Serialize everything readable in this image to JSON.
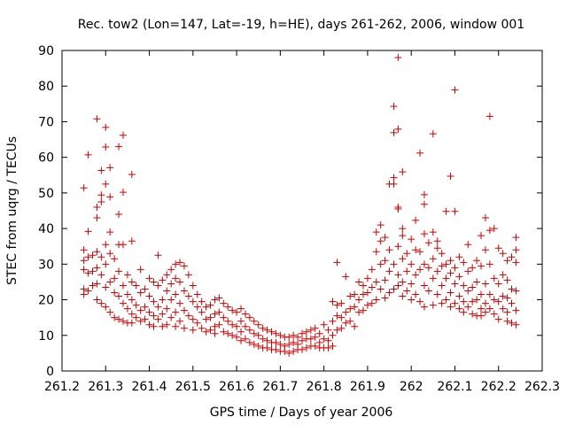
{
  "chart_data": {
    "type": "scatter",
    "title": "Rec. tow2 (Lon=147, Lat=-19, h=HE), days 261-262, 2006, window 001",
    "xlabel": "GPS time / Days of year 2006",
    "ylabel": "STEC from uqrg / TECUs",
    "xlim": [
      261.2,
      262.3
    ],
    "ylim": [
      0,
      90
    ],
    "xticks": [
      "261.2",
      "261.3",
      "261.4",
      "261.5",
      "261.6",
      "261.7",
      "261.8",
      "261.9",
      "262",
      "262.1",
      "262.2",
      "262.3"
    ],
    "yticks": [
      "0",
      "10",
      "20",
      "30",
      "40",
      "50",
      "60",
      "70",
      "80",
      "90"
    ],
    "grid": false,
    "legend": "none",
    "marker": "+",
    "color": "#cc0000",
    "points": [
      [
        261.25,
        51.4
      ],
      [
        261.25,
        34.0
      ],
      [
        261.25,
        31.0
      ],
      [
        261.25,
        28.5
      ],
      [
        261.25,
        23.0
      ],
      [
        261.25,
        21.5
      ],
      [
        261.26,
        60.7
      ],
      [
        261.26,
        39.2
      ],
      [
        261.26,
        32.0
      ],
      [
        261.26,
        27.5
      ],
      [
        261.26,
        22.5
      ],
      [
        261.27,
        32.5
      ],
      [
        261.27,
        28.0
      ],
      [
        261.27,
        24.0
      ],
      [
        261.28,
        70.8
      ],
      [
        261.28,
        46.0
      ],
      [
        261.28,
        43.0
      ],
      [
        261.28,
        33.5
      ],
      [
        261.28,
        29.0
      ],
      [
        261.28,
        24.5
      ],
      [
        261.28,
        20.0
      ],
      [
        261.29,
        56.3
      ],
      [
        261.29,
        49.4
      ],
      [
        261.29,
        47.5
      ],
      [
        261.29,
        32.0
      ],
      [
        261.29,
        27.0
      ],
      [
        261.29,
        19.0
      ],
      [
        261.3,
        68.4
      ],
      [
        261.3,
        62.9
      ],
      [
        261.3,
        52.5
      ],
      [
        261.3,
        35.5
      ],
      [
        261.3,
        30.0
      ],
      [
        261.3,
        23.5
      ],
      [
        261.3,
        18.0
      ],
      [
        261.31,
        57.1
      ],
      [
        261.31,
        48.9
      ],
      [
        261.31,
        39.0
      ],
      [
        261.31,
        33.0
      ],
      [
        261.31,
        25.0
      ],
      [
        261.31,
        16.5
      ],
      [
        261.32,
        31.5
      ],
      [
        261.32,
        26.0
      ],
      [
        261.32,
        22.0
      ],
      [
        261.32,
        15.0
      ],
      [
        261.33,
        63.0
      ],
      [
        261.33,
        44.0
      ],
      [
        261.33,
        35.5
      ],
      [
        261.33,
        28.0
      ],
      [
        261.33,
        21.0
      ],
      [
        261.33,
        14.5
      ],
      [
        261.34,
        66.2
      ],
      [
        261.34,
        50.2
      ],
      [
        261.34,
        35.5
      ],
      [
        261.34,
        24.0
      ],
      [
        261.34,
        19.0
      ],
      [
        261.34,
        14.0
      ],
      [
        261.35,
        27.0
      ],
      [
        261.35,
        21.5
      ],
      [
        261.35,
        17.5
      ],
      [
        261.35,
        13.5
      ],
      [
        261.36,
        55.2
      ],
      [
        261.36,
        36.5
      ],
      [
        261.36,
        25.0
      ],
      [
        261.36,
        20.0
      ],
      [
        261.36,
        16.0
      ],
      [
        261.36,
        13.5
      ],
      [
        261.37,
        24.0
      ],
      [
        261.37,
        18.5
      ],
      [
        261.37,
        15.0
      ],
      [
        261.38,
        28.5
      ],
      [
        261.38,
        22.0
      ],
      [
        261.38,
        17.0
      ],
      [
        261.38,
        14.0
      ],
      [
        261.39,
        23.0
      ],
      [
        261.39,
        18.0
      ],
      [
        261.39,
        14.5
      ],
      [
        261.4,
        26.0
      ],
      [
        261.4,
        21.0
      ],
      [
        261.4,
        16.5
      ],
      [
        261.4,
        13.0
      ],
      [
        261.41,
        25.0
      ],
      [
        261.41,
        19.5
      ],
      [
        261.41,
        15.5
      ],
      [
        261.41,
        12.5
      ],
      [
        261.42,
        32.5
      ],
      [
        261.42,
        24.0
      ],
      [
        261.42,
        18.0
      ],
      [
        261.42,
        14.5
      ],
      [
        261.43,
        25.5
      ],
      [
        261.43,
        20.0
      ],
      [
        261.43,
        16.0
      ],
      [
        261.43,
        12.5
      ],
      [
        261.44,
        27.0
      ],
      [
        261.44,
        22.5
      ],
      [
        261.44,
        17.5
      ],
      [
        261.44,
        13.0
      ],
      [
        261.45,
        28.5
      ],
      [
        261.45,
        24.5
      ],
      [
        261.45,
        20.0
      ],
      [
        261.45,
        15.0
      ],
      [
        261.46,
        30.0
      ],
      [
        261.46,
        26.0
      ],
      [
        261.46,
        21.5
      ],
      [
        261.46,
        16.5
      ],
      [
        261.46,
        12.5
      ],
      [
        261.47,
        30.5
      ],
      [
        261.47,
        25.0
      ],
      [
        261.47,
        19.0
      ],
      [
        261.47,
        14.0
      ],
      [
        261.48,
        29.5
      ],
      [
        261.48,
        22.5
      ],
      [
        261.48,
        17.0
      ],
      [
        261.48,
        12.0
      ],
      [
        261.49,
        27.0
      ],
      [
        261.49,
        21.0
      ],
      [
        261.49,
        15.5
      ],
      [
        261.5,
        24.0
      ],
      [
        261.5,
        19.5
      ],
      [
        261.5,
        14.5
      ],
      [
        261.5,
        11.5
      ],
      [
        261.51,
        21.5
      ],
      [
        261.51,
        18.0
      ],
      [
        261.51,
        13.5
      ],
      [
        261.52,
        19.5
      ],
      [
        261.52,
        16.5
      ],
      [
        261.52,
        12.0
      ],
      [
        261.53,
        18.0
      ],
      [
        261.53,
        14.5
      ],
      [
        261.53,
        11.0
      ],
      [
        261.54,
        18.5
      ],
      [
        261.54,
        15.0
      ],
      [
        261.54,
        11.5
      ],
      [
        261.55,
        20.0
      ],
      [
        261.55,
        16.0
      ],
      [
        261.55,
        12.5
      ],
      [
        261.55,
        10.5
      ],
      [
        261.56,
        20.5
      ],
      [
        261.56,
        16.5
      ],
      [
        261.56,
        13.0
      ],
      [
        261.57,
        19.0
      ],
      [
        261.57,
        15.0
      ],
      [
        261.57,
        11.0
      ],
      [
        261.58,
        18.0
      ],
      [
        261.58,
        14.0
      ],
      [
        261.58,
        10.5
      ],
      [
        261.59,
        17.0
      ],
      [
        261.59,
        13.0
      ],
      [
        261.59,
        10.0
      ],
      [
        261.6,
        16.5
      ],
      [
        261.6,
        12.5
      ],
      [
        261.6,
        9.5
      ],
      [
        261.61,
        17.5
      ],
      [
        261.61,
        14.0
      ],
      [
        261.61,
        11.0
      ],
      [
        261.61,
        8.5
      ],
      [
        261.62,
        16.0
      ],
      [
        261.62,
        12.5
      ],
      [
        261.62,
        9.0
      ],
      [
        261.63,
        15.0
      ],
      [
        261.63,
        11.5
      ],
      [
        261.63,
        8.0
      ],
      [
        261.64,
        14.0
      ],
      [
        261.64,
        10.5
      ],
      [
        261.64,
        7.5
      ],
      [
        261.65,
        13.0
      ],
      [
        261.65,
        10.0
      ],
      [
        261.65,
        7.0
      ],
      [
        261.66,
        12.0
      ],
      [
        261.66,
        9.0
      ],
      [
        261.66,
        6.5
      ],
      [
        261.67,
        11.5
      ],
      [
        261.67,
        8.5
      ],
      [
        261.67,
        6.5
      ],
      [
        261.68,
        11.0
      ],
      [
        261.68,
        8.0
      ],
      [
        261.68,
        6.0
      ],
      [
        261.69,
        10.5
      ],
      [
        261.69,
        8.0
      ],
      [
        261.69,
        6.0
      ],
      [
        261.7,
        10.0
      ],
      [
        261.7,
        7.5
      ],
      [
        261.7,
        5.5
      ],
      [
        261.71,
        9.5
      ],
      [
        261.71,
        7.0
      ],
      [
        261.71,
        5.5
      ],
      [
        261.72,
        9.5
      ],
      [
        261.72,
        7.5
      ],
      [
        261.72,
        5.0
      ],
      [
        261.73,
        10.0
      ],
      [
        261.73,
        8.0
      ],
      [
        261.73,
        5.5
      ],
      [
        261.74,
        9.5
      ],
      [
        261.74,
        7.5
      ],
      [
        261.74,
        6.0
      ],
      [
        261.75,
        10.5
      ],
      [
        261.75,
        8.5
      ],
      [
        261.75,
        6.0
      ],
      [
        261.76,
        11.0
      ],
      [
        261.76,
        9.0
      ],
      [
        261.76,
        6.5
      ],
      [
        261.77,
        11.5
      ],
      [
        261.77,
        9.0
      ],
      [
        261.77,
        7.0
      ],
      [
        261.78,
        12.0
      ],
      [
        261.78,
        9.5
      ],
      [
        261.78,
        7.0
      ],
      [
        261.79,
        10.5
      ],
      [
        261.79,
        8.0
      ],
      [
        261.79,
        6.5
      ],
      [
        261.8,
        13.0
      ],
      [
        261.8,
        9.0
      ],
      [
        261.8,
        6.5
      ],
      [
        261.81,
        11.5
      ],
      [
        261.81,
        8.5
      ],
      [
        261.81,
        6.5
      ],
      [
        261.82,
        19.5
      ],
      [
        261.82,
        14.0
      ],
      [
        261.82,
        10.0
      ],
      [
        261.82,
        7.0
      ],
      [
        261.83,
        30.5
      ],
      [
        261.83,
        18.5
      ],
      [
        261.83,
        15.5
      ],
      [
        261.83,
        11.5
      ],
      [
        261.84,
        19.0
      ],
      [
        261.84,
        15.0
      ],
      [
        261.84,
        12.0
      ],
      [
        261.85,
        26.5
      ],
      [
        261.85,
        16.5
      ],
      [
        261.85,
        13.5
      ],
      [
        261.86,
        21.0
      ],
      [
        261.86,
        17.5
      ],
      [
        261.86,
        14.0
      ],
      [
        261.87,
        21.5
      ],
      [
        261.87,
        18.0
      ],
      [
        261.87,
        12.5
      ],
      [
        261.88,
        25.0
      ],
      [
        261.88,
        20.0
      ],
      [
        261.88,
        16.5
      ],
      [
        261.89,
        24.0
      ],
      [
        261.89,
        21.5
      ],
      [
        261.89,
        17.0
      ],
      [
        261.9,
        26.0
      ],
      [
        261.9,
        22.0
      ],
      [
        261.9,
        18.5
      ],
      [
        261.91,
        28.5
      ],
      [
        261.91,
        23.5
      ],
      [
        261.91,
        19.0
      ],
      [
        261.92,
        39.0
      ],
      [
        261.92,
        33.5
      ],
      [
        261.92,
        25.0
      ],
      [
        261.92,
        20.0
      ],
      [
        261.93,
        41.0
      ],
      [
        261.93,
        36.5
      ],
      [
        261.93,
        30.0
      ],
      [
        261.93,
        23.0
      ],
      [
        261.94,
        37.5
      ],
      [
        261.94,
        31.0
      ],
      [
        261.94,
        25.5
      ],
      [
        261.94,
        20.5
      ],
      [
        261.95,
        52.5
      ],
      [
        261.95,
        34.0
      ],
      [
        261.95,
        28.0
      ],
      [
        261.95,
        22.0
      ],
      [
        261.96,
        74.3
      ],
      [
        261.96,
        66.9
      ],
      [
        261.96,
        54.3
      ],
      [
        261.96,
        52.5
      ],
      [
        261.96,
        30.0
      ],
      [
        261.96,
        23.0
      ],
      [
        261.97,
        88.0
      ],
      [
        261.97,
        67.9
      ],
      [
        261.97,
        46.0
      ],
      [
        261.97,
        45.5
      ],
      [
        261.97,
        35.0
      ],
      [
        261.97,
        27.0
      ],
      [
        261.97,
        24.0
      ],
      [
        261.98,
        55.9
      ],
      [
        261.98,
        40.0
      ],
      [
        261.98,
        38.0
      ],
      [
        261.98,
        31.5
      ],
      [
        261.98,
        25.0
      ],
      [
        261.98,
        21.0
      ],
      [
        261.99,
        33.0
      ],
      [
        261.99,
        28.0
      ],
      [
        261.99,
        22.5
      ],
      [
        262.0,
        37.0
      ],
      [
        262.0,
        30.0
      ],
      [
        262.0,
        24.5
      ],
      [
        262.0,
        20.0
      ],
      [
        262.01,
        42.3
      ],
      [
        262.01,
        34.0
      ],
      [
        262.01,
        27.0
      ],
      [
        262.01,
        21.5
      ],
      [
        262.02,
        61.2
      ],
      [
        262.02,
        33.5
      ],
      [
        262.02,
        28.5
      ],
      [
        262.02,
        19.5
      ],
      [
        262.03,
        49.5
      ],
      [
        262.03,
        46.8
      ],
      [
        262.03,
        38.5
      ],
      [
        262.03,
        30.0
      ],
      [
        262.03,
        24.0
      ],
      [
        262.03,
        18.0
      ],
      [
        262.04,
        36.0
      ],
      [
        262.04,
        29.0
      ],
      [
        262.04,
        22.5
      ],
      [
        262.05,
        66.6
      ],
      [
        262.05,
        39.0
      ],
      [
        262.05,
        31.5
      ],
      [
        262.05,
        26.0
      ],
      [
        262.05,
        18.5
      ],
      [
        262.06,
        36.5
      ],
      [
        262.06,
        34.5
      ],
      [
        262.06,
        28.0
      ],
      [
        262.06,
        21.5
      ],
      [
        262.07,
        33.0
      ],
      [
        262.07,
        29.5
      ],
      [
        262.07,
        24.0
      ],
      [
        262.07,
        19.0
      ],
      [
        262.08,
        44.8
      ],
      [
        262.08,
        30.0
      ],
      [
        262.08,
        26.0
      ],
      [
        262.08,
        20.0
      ],
      [
        262.09,
        54.7
      ],
      [
        262.09,
        31.0
      ],
      [
        262.09,
        27.5
      ],
      [
        262.09,
        22.0
      ],
      [
        262.09,
        18.0
      ],
      [
        262.1,
        78.9
      ],
      [
        262.1,
        44.8
      ],
      [
        262.1,
        29.0
      ],
      [
        262.1,
        24.5
      ],
      [
        262.1,
        19.0
      ],
      [
        262.11,
        32.0
      ],
      [
        262.11,
        26.5
      ],
      [
        262.11,
        21.0
      ],
      [
        262.11,
        17.5
      ],
      [
        262.12,
        30.5
      ],
      [
        262.12,
        24.0
      ],
      [
        262.12,
        19.5
      ],
      [
        262.12,
        16.5
      ],
      [
        262.13,
        35.5
      ],
      [
        262.13,
        28.0
      ],
      [
        262.13,
        22.5
      ],
      [
        262.13,
        18.0
      ],
      [
        262.14,
        29.0
      ],
      [
        262.14,
        23.5
      ],
      [
        262.14,
        19.5
      ],
      [
        262.14,
        16.0
      ],
      [
        262.15,
        31.0
      ],
      [
        262.15,
        25.0
      ],
      [
        262.15,
        20.0
      ],
      [
        262.15,
        15.5
      ],
      [
        262.16,
        38.0
      ],
      [
        262.16,
        29.5
      ],
      [
        262.16,
        21.5
      ],
      [
        262.16,
        17.5
      ],
      [
        262.16,
        15.5
      ],
      [
        262.17,
        43.0
      ],
      [
        262.17,
        34.0
      ],
      [
        262.17,
        24.5
      ],
      [
        262.17,
        19.0
      ],
      [
        262.17,
        16.5
      ],
      [
        262.18,
        71.5
      ],
      [
        262.18,
        39.5
      ],
      [
        262.18,
        30.0
      ],
      [
        262.18,
        21.5
      ],
      [
        262.18,
        17.5
      ],
      [
        262.19,
        40.0
      ],
      [
        262.19,
        26.0
      ],
      [
        262.19,
        20.0
      ],
      [
        262.19,
        16.0
      ],
      [
        262.2,
        34.5
      ],
      [
        262.2,
        24.5
      ],
      [
        262.2,
        19.5
      ],
      [
        262.2,
        14.5
      ],
      [
        262.21,
        33.0
      ],
      [
        262.21,
        27.0
      ],
      [
        262.21,
        21.0
      ],
      [
        262.21,
        17.5
      ],
      [
        262.22,
        31.0
      ],
      [
        262.22,
        25.5
      ],
      [
        262.22,
        20.5
      ],
      [
        262.22,
        16.5
      ],
      [
        262.22,
        14.0
      ],
      [
        262.23,
        32.0
      ],
      [
        262.23,
        23.0
      ],
      [
        262.23,
        19.0
      ],
      [
        262.23,
        13.5
      ],
      [
        262.24,
        37.5
      ],
      [
        262.24,
        34.0
      ],
      [
        262.24,
        30.5
      ],
      [
        262.24,
        22.5
      ],
      [
        262.24,
        17.0
      ],
      [
        262.24,
        13.0
      ]
    ]
  }
}
